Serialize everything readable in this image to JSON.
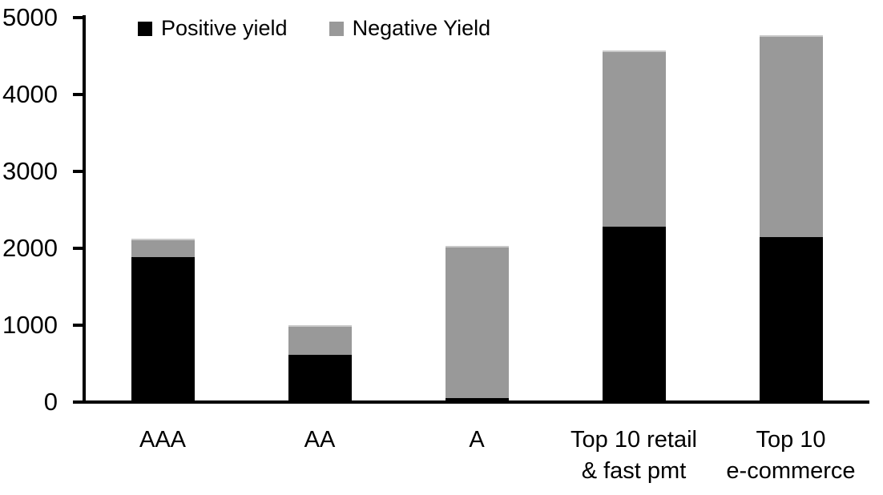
{
  "chart_data": {
    "type": "bar",
    "stacked": true,
    "title": "",
    "categories": [
      "AAA",
      "AA",
      "A",
      "Top 10 retail & fast pmt",
      "Top 10 e-commerce"
    ],
    "category_lines": [
      [
        "AAA"
      ],
      [
        "AA"
      ],
      [
        "A"
      ],
      [
        "Top 10 retail",
        "& fast pmt"
      ],
      [
        "Top 10",
        "e-commerce"
      ]
    ],
    "series": [
      {
        "name": "Positive yield",
        "color": "#000000",
        "values": [
          1890,
          610,
          50,
          2280,
          2150
        ]
      },
      {
        "name": "Negative Yield",
        "color": "#999999",
        "values": [
          240,
          390,
          1980,
          2290,
          2620
        ]
      }
    ],
    "totals": [
      2130,
      1000,
      2030,
      4570,
      4770
    ],
    "xlabel": "",
    "ylabel": "",
    "ylim": [
      0,
      5000
    ],
    "yticks": [
      0,
      1000,
      2000,
      3000,
      4000,
      5000
    ],
    "grid": false,
    "legend_position": "top",
    "axis_color": "#000000",
    "background_color": "#ffffff"
  }
}
